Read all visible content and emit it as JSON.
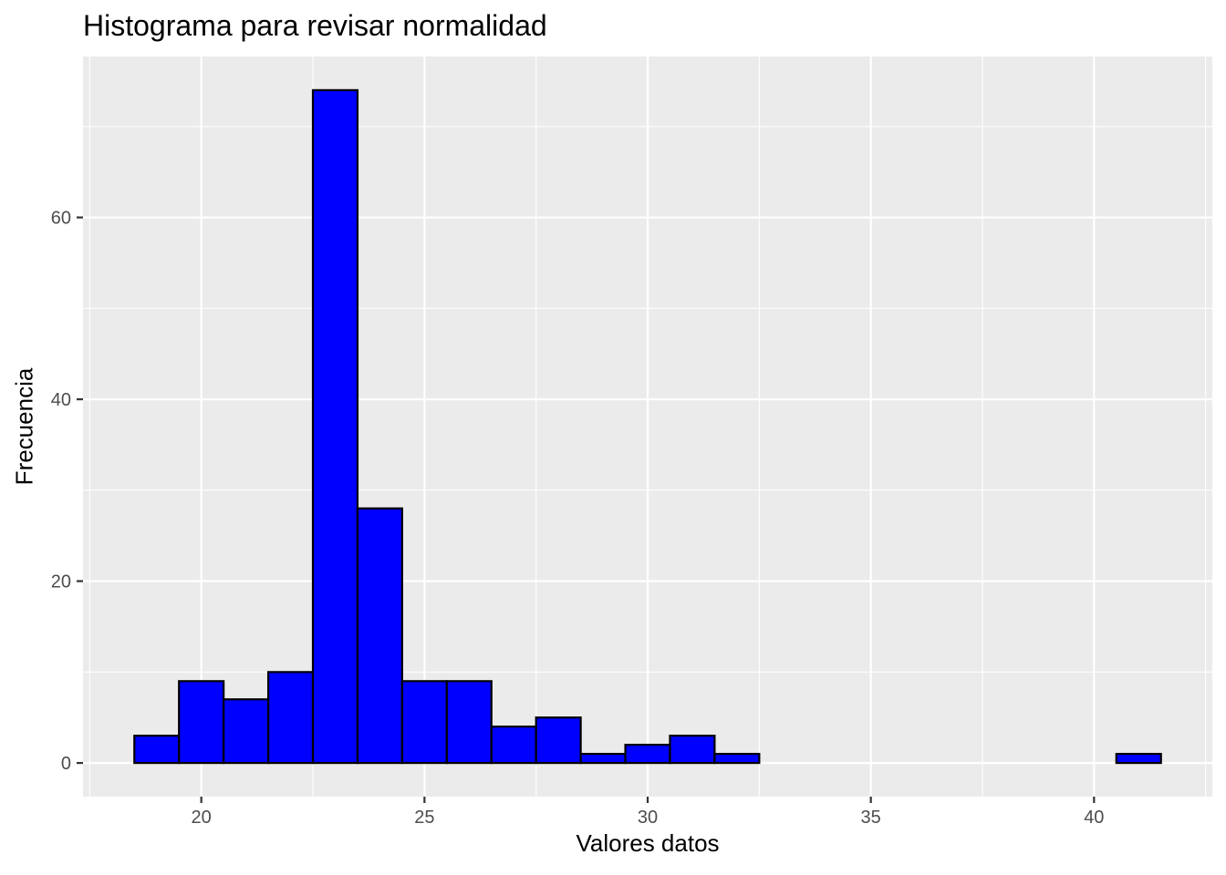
{
  "chart_data": {
    "type": "bar",
    "title": "Histograma para revisar normalidad",
    "xlabel": "Valores datos",
    "ylabel": "Frecuencia",
    "bin_width": 1,
    "bins": [
      {
        "x": 19,
        "count": 3
      },
      {
        "x": 20,
        "count": 9
      },
      {
        "x": 21,
        "count": 7
      },
      {
        "x": 22,
        "count": 10
      },
      {
        "x": 23,
        "count": 74
      },
      {
        "x": 24,
        "count": 28
      },
      {
        "x": 25,
        "count": 9
      },
      {
        "x": 26,
        "count": 9
      },
      {
        "x": 27,
        "count": 4
      },
      {
        "x": 28,
        "count": 5
      },
      {
        "x": 29,
        "count": 1
      },
      {
        "x": 30,
        "count": 2
      },
      {
        "x": 31,
        "count": 3
      },
      {
        "x": 32,
        "count": 1
      },
      {
        "x": 33,
        "count": 0
      },
      {
        "x": 34,
        "count": 0
      },
      {
        "x": 35,
        "count": 0
      },
      {
        "x": 36,
        "count": 0
      },
      {
        "x": 37,
        "count": 0
      },
      {
        "x": 38,
        "count": 0
      },
      {
        "x": 39,
        "count": 0
      },
      {
        "x": 40,
        "count": 0
      },
      {
        "x": 41,
        "count": 1
      }
    ],
    "xlim": [
      17.35,
      42.65
    ],
    "ylim": [
      -3.7,
      77.7
    ],
    "x_ticks": [
      20,
      25,
      30,
      35,
      40
    ],
    "y_ticks": [
      0,
      20,
      40,
      60
    ],
    "grid": true,
    "colors": {
      "bar_fill": "#0000ff",
      "bar_outline": "#000000",
      "panel_background": "#ebebeb",
      "grid": "#ffffff",
      "tick_text": "#4d4d4d"
    }
  }
}
